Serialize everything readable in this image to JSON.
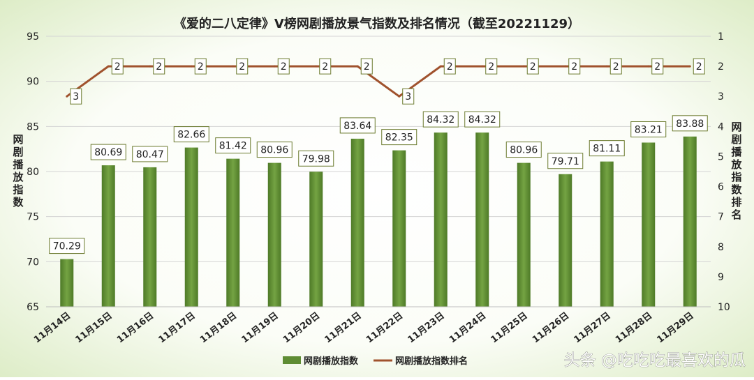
{
  "chart_data": {
    "type": "bar",
    "title": "《爱的二八定律》V榜网剧播放景气指数及排名情况（截至20221129）",
    "categories": [
      "11月14日",
      "11月15日",
      "11月16日",
      "11月17日",
      "11月18日",
      "11月19日",
      "11月20日",
      "11月21日",
      "11月22日",
      "11月23日",
      "11月24日",
      "11月25日",
      "11月26日",
      "11月27日",
      "11月28日",
      "11月29日"
    ],
    "series": [
      {
        "name": "网剧播放指数",
        "type": "bar",
        "axis": "left",
        "values": [
          70.29,
          80.69,
          80.47,
          82.66,
          81.42,
          80.96,
          79.98,
          83.64,
          82.35,
          84.32,
          84.32,
          80.96,
          79.71,
          81.11,
          83.21,
          83.88
        ],
        "labels": [
          "70.29",
          "80.69",
          "80.47",
          "82.66",
          "81.42",
          "80.96",
          "79.98",
          "83.64",
          "82.35",
          "84.32",
          "84.32",
          "80.96",
          "79.71",
          "81.11",
          "83.21",
          "83.88"
        ]
      },
      {
        "name": "网剧播放指数排名",
        "type": "line",
        "axis": "right",
        "values": [
          3,
          2,
          2,
          2,
          2,
          2,
          2,
          2,
          3,
          2,
          2,
          2,
          2,
          2,
          2,
          2
        ],
        "labels": [
          "3",
          "2",
          "2",
          "2",
          "2",
          "2",
          "2",
          "2",
          "3",
          "2",
          "2",
          "2",
          "2",
          "2",
          "2",
          "2"
        ]
      }
    ],
    "ylabel": "网剧播放指数",
    "y2label": "网剧播放指数排名",
    "ylim": [
      65,
      95
    ],
    "yticks": [
      "65",
      "70",
      "75",
      "80",
      "85",
      "90",
      "95"
    ],
    "y2lim": [
      10,
      1
    ],
    "y2_inverted": true,
    "y2ticks": [
      "1",
      "2",
      "3",
      "4",
      "5",
      "6",
      "7",
      "8",
      "9",
      "10"
    ],
    "grid": true,
    "legend_position": "bottom",
    "colors": {
      "bar_top": "#6f9c3e",
      "bar_bottom": "#4f7a28",
      "line": "#a0522d",
      "label_border": "#6b7a2e",
      "background_edge": "#dcebc4",
      "text": "#222222"
    }
  },
  "watermark": "头条 @吃吃吃最喜欢的瓜"
}
